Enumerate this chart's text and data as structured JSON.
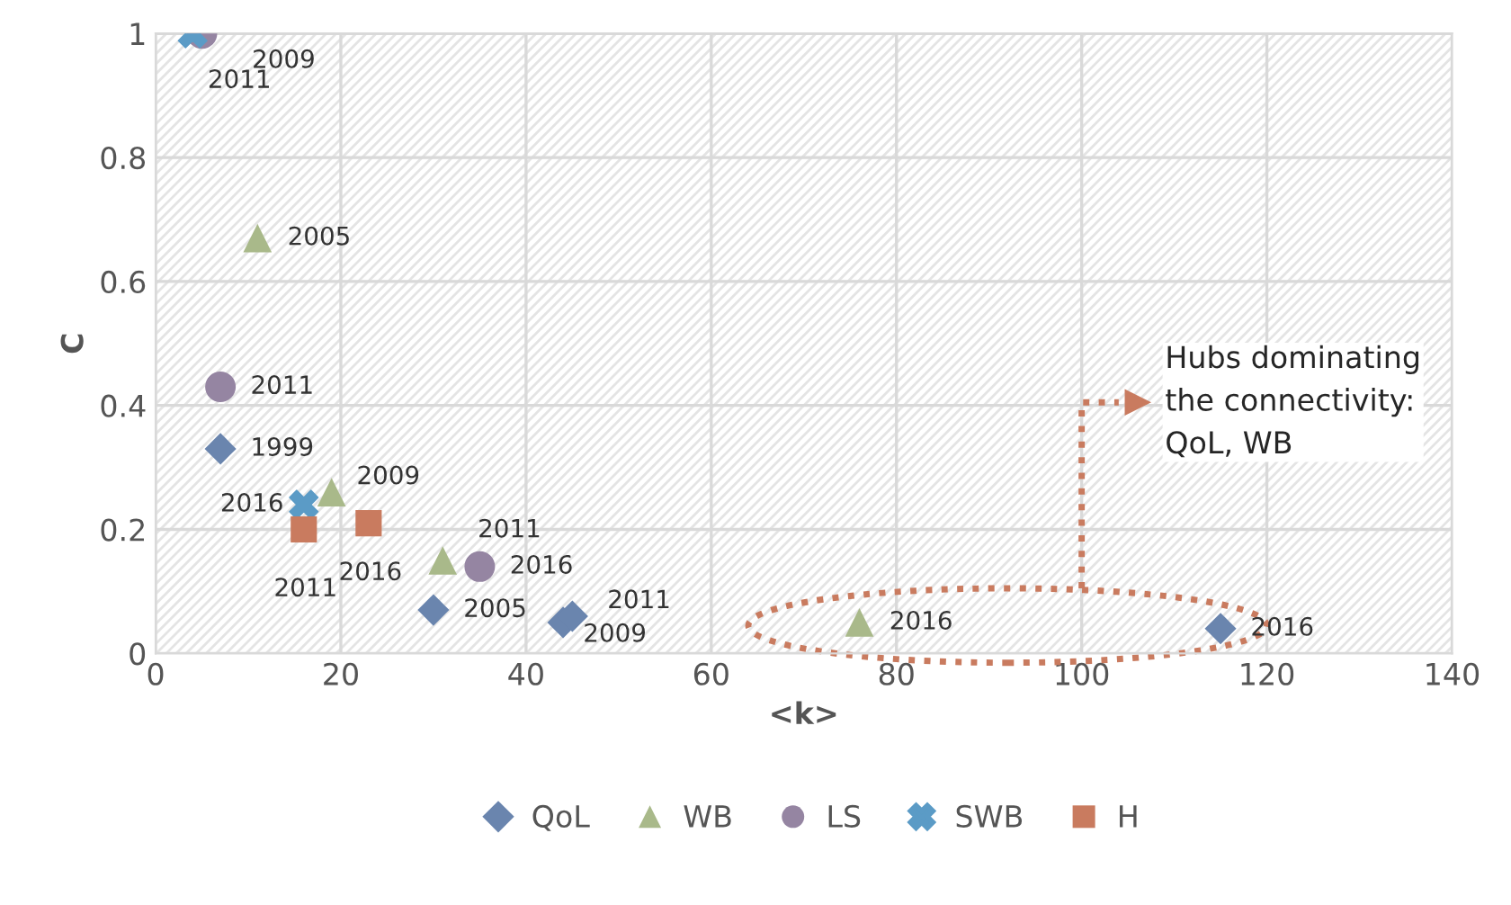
{
  "chart_data": {
    "type": "scatter",
    "xlabel": "<k>",
    "ylabel": "C",
    "xlim": [
      0,
      140
    ],
    "xticks": [
      0,
      20,
      40,
      60,
      80,
      100,
      120,
      140
    ],
    "ylim": [
      0,
      1
    ],
    "yticks": [
      0,
      0.2,
      0.4,
      0.6,
      0.8,
      1
    ],
    "grid": true,
    "legend": "bottom",
    "annotations": [
      {
        "text": "1999",
        "x": 7,
        "y": 0.33
      },
      {
        "text": "2005",
        "x": 30,
        "y": 0.07
      },
      {
        "text": "2009",
        "x": 44,
        "y": 0.05
      },
      {
        "text": "2011",
        "x": 45,
        "y": 0.06
      },
      {
        "text": "2016",
        "x": 115,
        "y": 0.04
      },
      {
        "text": "2005",
        "x": 11,
        "y": 0.67
      },
      {
        "text": "2009",
        "x": 19,
        "y": 0.26
      },
      {
        "text": "2011",
        "x": 31,
        "y": 0.15
      },
      {
        "text": "2016",
        "x": 76,
        "y": 0.05
      },
      {
        "text": "2009",
        "x": 5,
        "y": 1.0
      },
      {
        "text": "2011",
        "x": 7,
        "y": 0.43
      },
      {
        "text": "2016",
        "x": 35,
        "y": 0.14
      },
      {
        "text": "2011",
        "x": 4,
        "y": 1.0
      },
      {
        "text": "2016",
        "x": 16,
        "y": 0.24
      },
      {
        "text": "2011",
        "x": 16,
        "y": 0.2
      },
      {
        "text": "2016",
        "x": 23,
        "y": 0.21
      },
      "Hubs dominating\nthe connectivity:\nQoL, WB"
    ],
    "series": [
      {
        "name": "QoL",
        "color": "#6a85ae",
        "marker": "diamond",
        "x": [
          7,
          30,
          44,
          45,
          115
        ],
        "values": [
          0.33,
          0.07,
          0.05,
          0.06,
          0.04
        ]
      },
      {
        "name": "WB",
        "color": "#a9b98a",
        "marker": "triangle",
        "x": [
          11,
          19,
          31,
          76
        ],
        "values": [
          0.67,
          0.26,
          0.15,
          0.05
        ]
      },
      {
        "name": "LS",
        "color": "#9585a2",
        "marker": "circle",
        "x": [
          5,
          7,
          35
        ],
        "values": [
          1.0,
          0.43,
          0.14
        ]
      },
      {
        "name": "SWB",
        "color": "#5b9bc6",
        "marker": "cross",
        "x": [
          4,
          16
        ],
        "values": [
          1.0,
          0.24
        ]
      },
      {
        "name": "H",
        "color": "#c97b5f",
        "marker": "square",
        "x": [
          16,
          23
        ],
        "values": [
          0.2,
          0.21
        ]
      }
    ]
  }
}
